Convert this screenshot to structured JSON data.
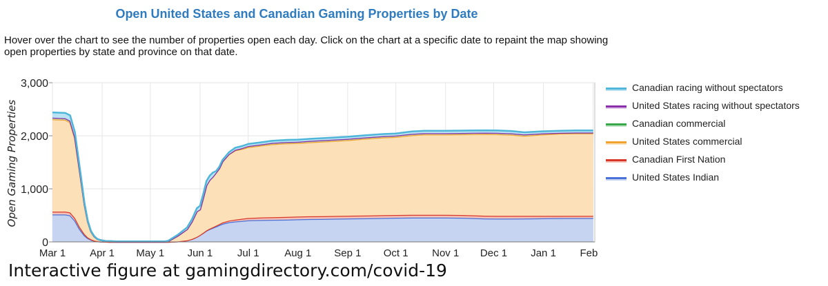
{
  "page": {
    "title": "Open United States and Canadian Gaming Properties by Date",
    "description": "Hover over the chart to see the number of properties open each day. Click on the chart at a specific date to repaint the map showing open properties by state and province on that date.",
    "footer": "Interactive figure at gamingdirectory.com/covid-19"
  },
  "chart_data": {
    "type": "area",
    "stacked": true,
    "title": "Open United States and Canadian Gaming Properties by Date",
    "ylabel": "Open Gaming Properties",
    "xlabel": "",
    "ylim": [
      0,
      3000
    ],
    "yticks": [
      0,
      1000,
      2000,
      3000
    ],
    "ytick_labels": [
      "0",
      "1,000",
      "2,000",
      "3,000"
    ],
    "xlim": [
      0,
      338
    ],
    "xticks": [
      0,
      31,
      61,
      92,
      122,
      153,
      184,
      214,
      245,
      275,
      306,
      337
    ],
    "xtick_labels": [
      "Mar 1",
      "Apr 1",
      "May 1",
      "Jun 1",
      "Jul 1",
      "Aug 1",
      "Sep 1",
      "Oct 1",
      "Nov 1",
      "Dec 1",
      "Jan 1",
      "Feb 1"
    ],
    "x_unit": "days since Mar 1",
    "grid": true,
    "legend_position": "right",
    "x": [
      0,
      8,
      11,
      14,
      17,
      20,
      22,
      24,
      26,
      28,
      30,
      33,
      36,
      40,
      45,
      50,
      55,
      60,
      61,
      65,
      70,
      72,
      78,
      84,
      87,
      90,
      92,
      94,
      96,
      98,
      100,
      102,
      104,
      106,
      110,
      114,
      118,
      122,
      130,
      137,
      146,
      153,
      160,
      168,
      176,
      184,
      196,
      206,
      214,
      224,
      232,
      245,
      255,
      262,
      270,
      277,
      286,
      294,
      306,
      316,
      326,
      337
    ],
    "series": [
      {
        "name": "United States Indian",
        "color": "#4a72d8",
        "fill": "#c6d4f2",
        "values": [
          515,
          515,
          500,
          400,
          240,
          120,
          70,
          40,
          20,
          10,
          5,
          2,
          0,
          0,
          0,
          0,
          0,
          0,
          0,
          0,
          0,
          0,
          8,
          30,
          55,
          95,
          130,
          170,
          210,
          240,
          265,
          290,
          315,
          340,
          370,
          385,
          395,
          405,
          412,
          415,
          420,
          425,
          430,
          433,
          436,
          440,
          445,
          450,
          455,
          458,
          458,
          458,
          455,
          448,
          440,
          438,
          438,
          440,
          445,
          448,
          448,
          448
        ]
      },
      {
        "name": "Canadian First Nation",
        "color": "#d9372a",
        "fill": "#f3c1b8",
        "values": [
          55,
          55,
          55,
          50,
          40,
          25,
          15,
          8,
          5,
          3,
          2,
          0,
          0,
          0,
          0,
          0,
          0,
          0,
          0,
          0,
          0,
          0,
          0,
          0,
          0,
          0,
          0,
          2,
          5,
          8,
          12,
          15,
          20,
          25,
          30,
          35,
          40,
          45,
          48,
          50,
          52,
          52,
          52,
          52,
          52,
          52,
          52,
          52,
          52,
          52,
          52,
          52,
          52,
          52,
          52,
          52,
          52,
          50,
          45,
          42,
          42,
          42
        ]
      },
      {
        "name": "United States commercial",
        "color": "#f0a32f",
        "fill": "#fbe0b8",
        "values": [
          1740,
          1730,
          1700,
          1500,
          1050,
          550,
          300,
          150,
          80,
          40,
          25,
          15,
          10,
          5,
          5,
          5,
          5,
          5,
          5,
          5,
          5,
          10,
          105,
          210,
          330,
          480,
          480,
          660,
          850,
          920,
          950,
          1000,
          1050,
          1150,
          1250,
          1305,
          1315,
          1335,
          1355,
          1375,
          1385,
          1385,
          1395,
          1405,
          1415,
          1425,
          1450,
          1465,
          1470,
          1500,
          1515,
          1515,
          1520,
          1530,
          1540,
          1540,
          1530,
          1510,
          1535,
          1550,
          1555,
          1555
        ]
      },
      {
        "name": "Canadian commercial",
        "color": "#38a94a",
        "fill": "#bfe3c4",
        "values": [
          30,
          30,
          30,
          25,
          20,
          10,
          5,
          2,
          0,
          0,
          0,
          0,
          0,
          0,
          0,
          0,
          0,
          0,
          0,
          0,
          0,
          0,
          0,
          0,
          0,
          0,
          0,
          0,
          0,
          0,
          0,
          0,
          0,
          0,
          5,
          10,
          15,
          20,
          22,
          25,
          25,
          25,
          25,
          25,
          25,
          25,
          25,
          25,
          25,
          25,
          25,
          25,
          25,
          25,
          25,
          25,
          25,
          25,
          20,
          15,
          15,
          15
        ]
      },
      {
        "name": "United States racing without spectators",
        "color": "#8b2fa8",
        "fill": "#dcc0e8",
        "values": [
          0,
          0,
          0,
          0,
          0,
          0,
          0,
          0,
          0,
          0,
          0,
          0,
          0,
          0,
          0,
          0,
          0,
          0,
          0,
          0,
          0,
          0,
          0,
          0,
          0,
          0,
          0,
          0,
          0,
          0,
          0,
          0,
          0,
          0,
          0,
          0,
          0,
          0,
          0,
          0,
          0,
          0,
          0,
          0,
          0,
          0,
          0,
          0,
          0,
          0,
          0,
          0,
          0,
          0,
          0,
          0,
          0,
          0,
          0,
          0,
          0,
          0
        ]
      },
      {
        "name": "Canadian racing without spectators",
        "color": "#4fb6d9",
        "fill": "#b9e3f2",
        "values": [
          100,
          100,
          100,
          90,
          60,
          25,
          10,
          5,
          5,
          2,
          0,
          0,
          5,
          5,
          5,
          5,
          5,
          5,
          5,
          5,
          5,
          10,
          20,
          35,
          45,
          60,
          70,
          75,
          80,
          80,
          80,
          30,
          30,
          30,
          35,
          40,
          40,
          40,
          40,
          40,
          40,
          40,
          40,
          40,
          40,
          40,
          40,
          40,
          40,
          45,
          45,
          45,
          45,
          45,
          45,
          45,
          45,
          40,
          40,
          40,
          40,
          40
        ]
      }
    ],
    "legend_order": [
      "Canadian racing without spectators",
      "United States racing without spectators",
      "Canadian commercial",
      "United States commercial",
      "Canadian First Nation",
      "United States Indian"
    ]
  }
}
